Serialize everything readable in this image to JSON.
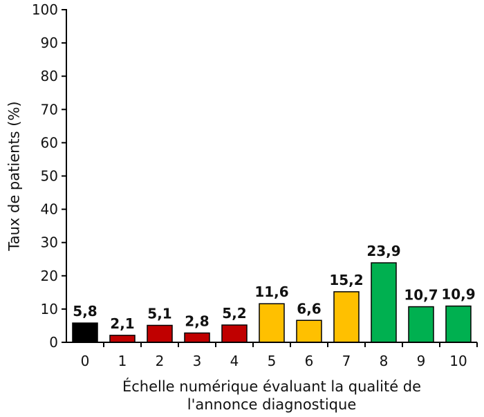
{
  "chart_data": {
    "type": "bar",
    "categories": [
      "0",
      "1",
      "2",
      "3",
      "4",
      "5",
      "6",
      "7",
      "8",
      "9",
      "10"
    ],
    "values": [
      5.8,
      2.1,
      5.1,
      2.8,
      5.2,
      11.6,
      6.6,
      15.2,
      23.9,
      10.7,
      10.9
    ],
    "value_labels": [
      "5,8",
      "2,1",
      "5,1",
      "2,8",
      "5,2",
      "11,6",
      "6,6",
      "15,2",
      "23,9",
      "10,7",
      "10,9"
    ],
    "bar_colors": [
      "#000000",
      "#c00000",
      "#c00000",
      "#c00000",
      "#c00000",
      "#ffc000",
      "#ffc000",
      "#ffc000",
      "#00b050",
      "#00b050",
      "#00b050"
    ],
    "ylabel": "Taux de patients (%)",
    "xlabel_lines": [
      "Échelle numérique évaluant la qualité de",
      "l'annonce diagnostique"
    ],
    "ylim": [
      0,
      100
    ],
    "yticks": [
      "0",
      "10",
      "20",
      "30",
      "40",
      "50",
      "60",
      "70",
      "80",
      "90",
      "100"
    ],
    "grid": false,
    "legend": "none"
  }
}
